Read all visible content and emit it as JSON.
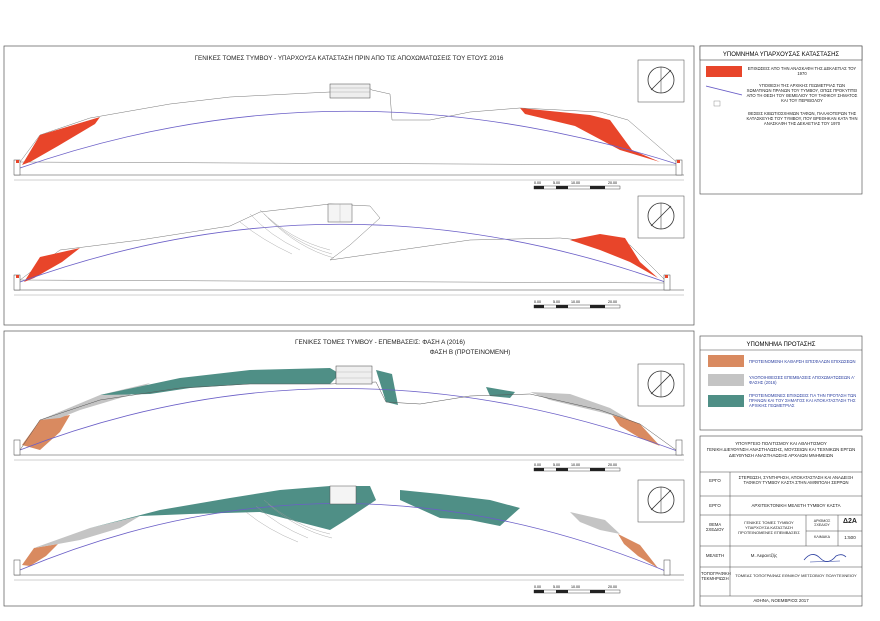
{
  "top_panel": {
    "title": "ΓΕΝΙΚΕΣ ΤΟΜΕΣ ΤΥΜΒΟΥ - ΥΠΑΡΧΟΥΣΑ ΚΑΤΑΣΤΑΣΗ ΠΡΙΝ ΑΠΟ ΤΙΣ ΑΠΟΧΩΜΑΤΩΣΕΙΣ ΤΟΥ ΕΤΟΥΣ 2016",
    "scale_ticks": [
      "0.00",
      "5.00",
      "10.00",
      "",
      "20.00"
    ]
  },
  "bottom_panel": {
    "title_line1": "ΓΕΝΙΚΕΣ ΤΟΜΕΣ ΤΥΜΒΟΥ - ΕΠΕΜΒΑΣΕΙΣ: ΦΑΣΗ Α (2016)",
    "title_line2": "ΦΑΣΗ Β (ΠΡΟΤΕΙΝΟΜΕΝΗ)",
    "scale_ticks": [
      "0.00",
      "5.00",
      "10.00",
      "",
      "20.00"
    ]
  },
  "legend_existing": {
    "title": "ΥΠΟΜΝΗΜΑ ΥΠΑΡΧΟΥΣΑΣ ΚΑΤΑΣΤΑΣΗΣ",
    "items": [
      {
        "text": "ΕΠΙΧΩΣΕΙΣ ΑΠΟ ΤΗΝ ΑΝΑΣΚΑΦΗ ΤΗΣ ΔΕΚΑΕΤΙΑΣ ΤΟΥ 1970",
        "color": "#e8452a"
      },
      {
        "text": "ΥΠΟΘΕΣΗ ΤΗΣ ΑΡΧΙΚΗΣ ΓΕΩΜΕΤΡΙΑΣ ΤΩΝ ΧΩΜΑΤΙΝΩΝ ΠΡΑΝΩΝ ΤΟΥ ΤΥΜΒΟΥ, ΟΠΩΣ ΠΡΟΚΥΠΤΕΙ ΑΠΟ ΤΗ ΘΕΣΗ ΤΟΥ ΘΕΜΕΛΙΟΥ ΤΟΥ ΤΑΦΙΚΟΥ ΣΗΜΑΤΟΣ ΚΑΙ ΤΟΥ ΠΕΡΙΒΟΛΟΥ",
        "color": "#6b5fc7"
      },
      {
        "text": "ΘΕΣΕΙΣ ΚΙΒΩΤΙΟΣΧΗΜΩΝ ΤΑΦΩΝ, ΠΑΛΑΙΟΤΕΡΩΝ ΤΗΣ ΚΑΤΑΣΚΕΥΗΣ ΤΟΥ ΤΥΜΒΟΥ, ΠΟΥ ΒΡΕΘΗΚΑΝ ΚΑΤΑ ΤΗΝ ΑΝΑΣΚΑΦΗ ΤΗΣ ΔΕΚΑΕΤΙΑΣ ΤΟΥ 1970",
        "color": "#ffffff"
      }
    ]
  },
  "legend_proposal": {
    "title": "ΥΠΟΜΝΗΜΑ ΠΡΟΤΑΣΗΣ",
    "items": [
      {
        "text": "ΠΡΟΤΕΙΝΟΜΕΝΗ ΚΑΘΑΡΣΗ ΕΠΙΣΦΑΛΩΝ ΕΠΙΧΩΣΕΩΝ",
        "color": "#d98a60"
      },
      {
        "text": "ΥΛΟΠΟΙΗΘΕΙΣΕΣ ΕΠΕΜΒΑΣΕΙΣ ΑΠΟΧΩΜΑΤΩΣΕΩΝ Α' ΦΑΣΗΣ (2016)",
        "color": "#c4c4c4"
      },
      {
        "text": "ΠΡΟΤΕΙΝΟΜΕΝΕΣ ΕΠΙΧΩΣΕΙΣ ΓΙΑ ΤΗΝ ΠΡΟΤΑΣΗ ΤΩΝ ΠΡΑΝΩΝ ΚΑΙ ΤΟΥ ΣΗΜΑΤΟΣ ΚΑΙ ΑΠΟΚΑΤΑΣΤΑΣΗ ΤΗΣ ΑΡΧΙΚΗΣ ΓΕΩΜΕΤΡΙΑΣ",
        "color": "#4f8f86"
      }
    ]
  },
  "title_block": {
    "ministry": [
      "ΥΠΟΥΡΓΕΙΟ ΠΟΛΙΤΙΣΜΟΥ ΚΑΙ ΑΘΛΗΤΙΣΜΟΥ",
      "ΓΕΝΙΚΗ ΔΙΕΥΘΥΝΣΗ ΑΝΑΣΤΗΛΩΣΗΣ, ΜΟΥΣΕΙΩΝ ΚΑΙ ΤΕΧΝΙΚΩΝ ΕΡΓΩΝ",
      "ΔΙΕΥΘΥΝΣΗ ΑΝΑΣΤΗΛΩΣΗΣ ΑΡΧΑΙΩΝ ΜΝΗΜΕΙΩΝ"
    ],
    "rows": [
      {
        "label": "ΕΡΓΟ",
        "value": "ΣΤΕΡΕΩΣΗ, ΣΥΝΤΗΡΗΣΗ, ΑΠΟΚΑΤΑΣΤΑΣΗ ΚΑΙ ΑΝΑΔΕΙΞΗ ΤΑΦΙΚΟΥ ΤΥΜΒΟΥ ΚΑΣΤΑ ΣΤΗΝ ΑΜΦΙΠΟΛΗ ΣΕΡΡΩΝ"
      },
      {
        "label": "ΕΡΓΟ",
        "value": "ΑΡΧΙΤΕΚΤΟΝΙΚΗ ΜΕΛΕΤΗ ΤΥΜΒΟΥ ΚΑΣΤΑ"
      },
      {
        "label": "ΘΕΜΑ ΣΧΕΔΙΟΥ",
        "value": "ΓΕΝΙΚΕΣ ΤΟΜΕΣ ΤΥΜΒΟΥ ΥΠΑΡΧΟΥΣΑ ΚΑΤΑΣΤΑΣΗ ΠΡΟΤΕΙΝΟΜΕΝΕΣ ΕΠΕΜΒΑΣΕΙΣ"
      },
      {
        "label": "ΜΕΛΕΤΗ",
        "value": "Μ. Λεφαντζής"
      },
      {
        "label": "ΤΟΠΟΓΡΑΦΙΚΗ ΤΕΚΜΗΡΙΩΣΗ",
        "value": "ΤΟΜΕΑΣ ΤΟΠΟΓΡΑΦΙΑΣ ΕΘΝΙΚΟΥ ΜΕΤΣΟΒΙΟΥ ΠΟΛΥΤΕΧΝΕΙΟΥ"
      }
    ],
    "drawing_no_label": "ΑΡΙΘΜΟΣ ΣΧΕΔΙΟΥ",
    "drawing_no": "Δ2Α",
    "scale_label": "ΚΛΙΜΑΚΑ",
    "scale": "1:500",
    "footer": "ΑΘΗΝΑ, ΝΟΕΜΒΡΙΟΣ 2017"
  },
  "colors": {
    "red_fill": "#e8452a",
    "teal_fill": "#4f8f86",
    "orange_fill": "#d98a60",
    "gray_fill": "#c4c4c4",
    "outline": "#6b5fc7"
  }
}
